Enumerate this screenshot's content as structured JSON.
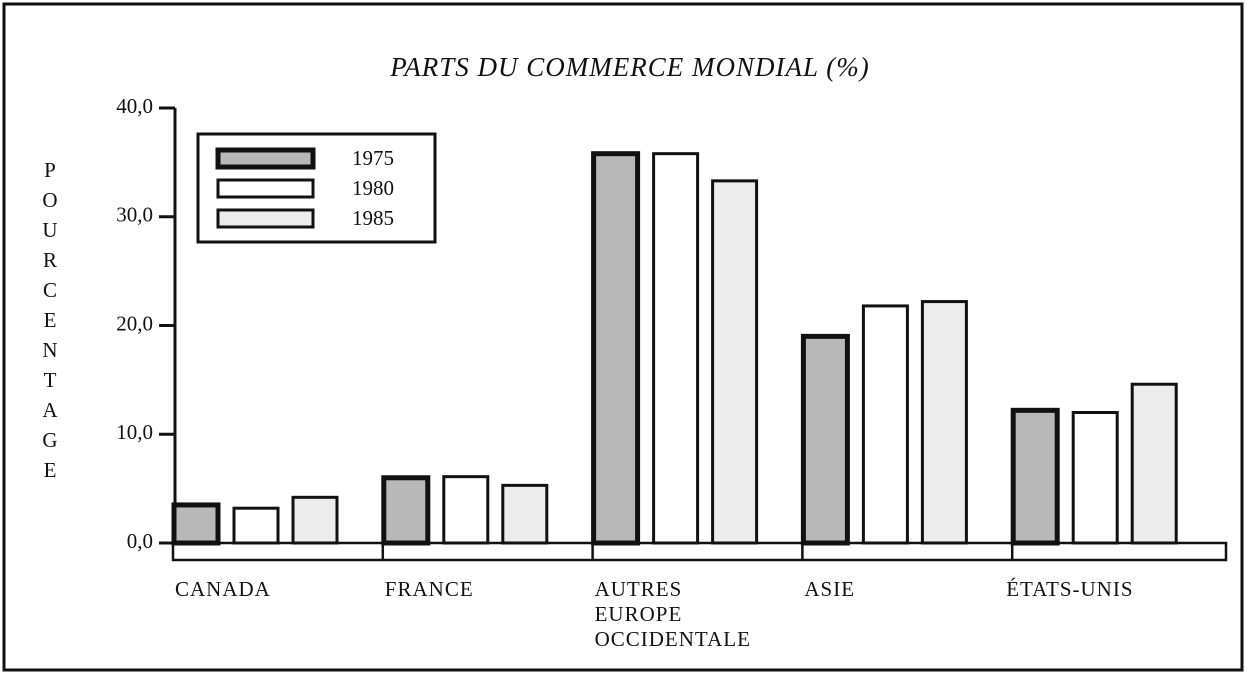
{
  "chart_data": {
    "type": "bar",
    "title": "PARTS DU COMMERCE MONDIAL (%)",
    "y_label": "POURCENTAGE",
    "categories": [
      "CANADA",
      "FRANCE",
      "AUTRES\nEUROPE\nOCCIDENTALE",
      "ASIE",
      "ÉTATS-UNIS"
    ],
    "series": [
      {
        "name": "1975",
        "color": "#b8b8b8",
        "values": [
          3.5,
          6.0,
          35.8,
          19.0,
          12.2
        ]
      },
      {
        "name": "1980",
        "color": "#ffffff",
        "values": [
          3.2,
          6.1,
          35.8,
          21.8,
          12.0
        ]
      },
      {
        "name": "1985",
        "color": "#ececec",
        "values": [
          4.2,
          5.3,
          33.3,
          22.2,
          14.6
        ]
      }
    ],
    "ylim": [
      0,
      40
    ],
    "yticks": [
      {
        "value": 0,
        "label": "0,0"
      },
      {
        "value": 10,
        "label": "10,0"
      },
      {
        "value": 20,
        "label": "20,0"
      },
      {
        "value": 30,
        "label": "30,0"
      },
      {
        "value": 40,
        "label": "40,0"
      }
    ],
    "legend": "upper left"
  }
}
